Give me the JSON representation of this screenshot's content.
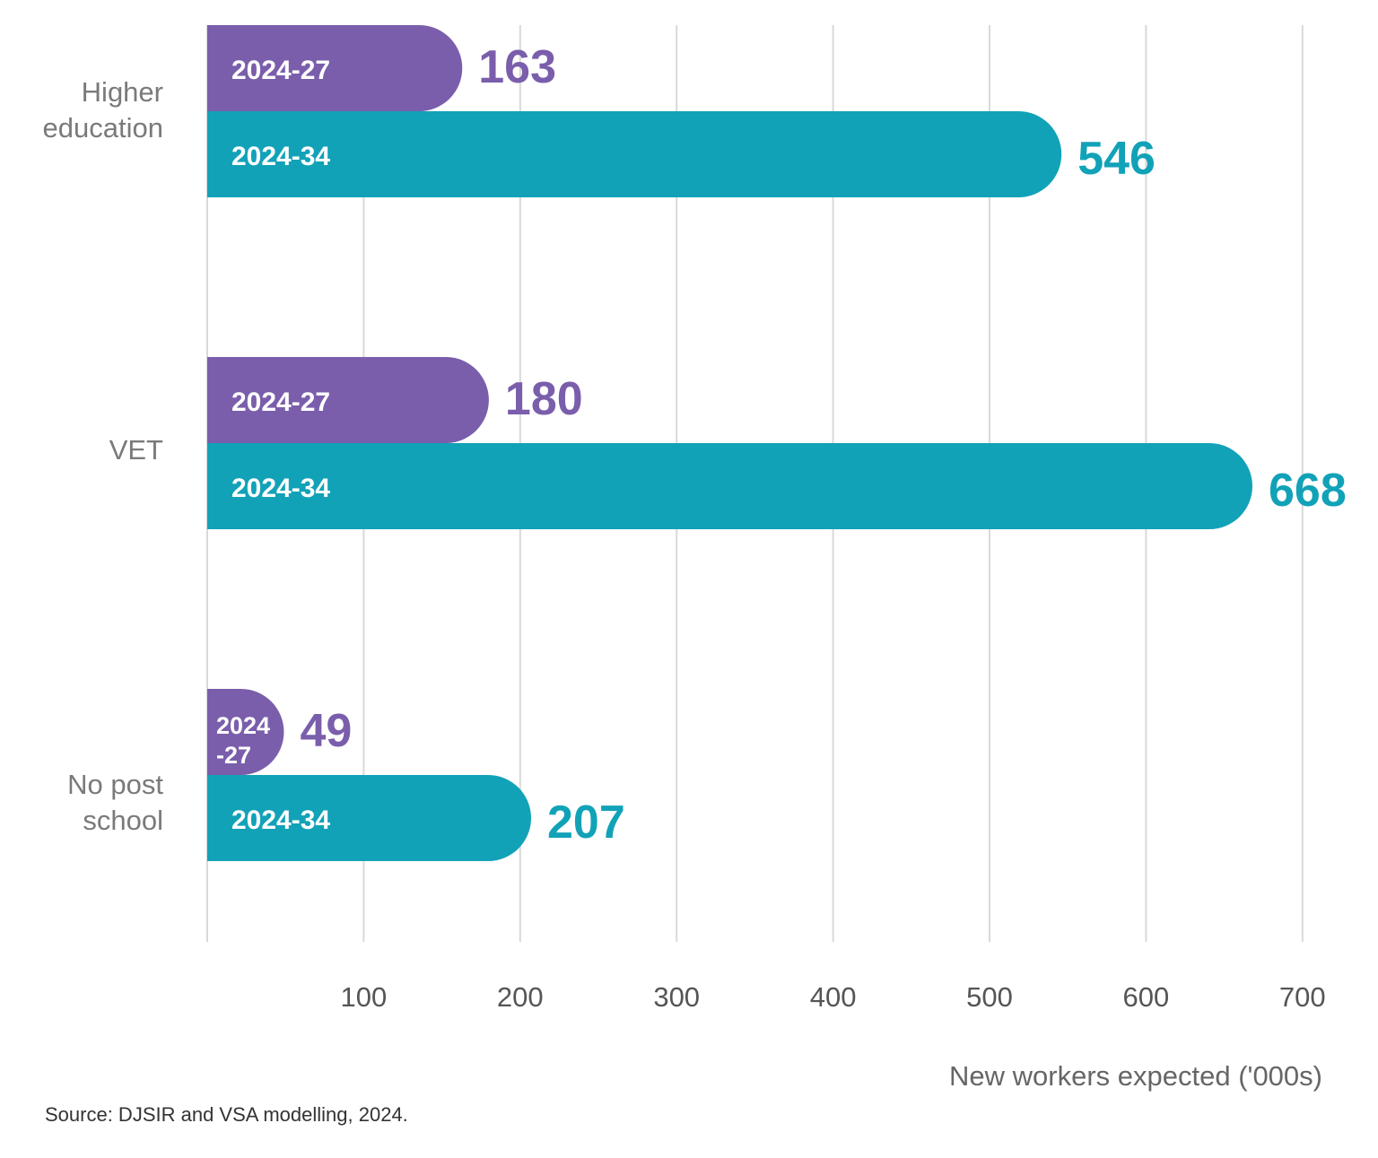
{
  "chart_data": {
    "type": "bar",
    "orientation": "horizontal",
    "categories": [
      "Higher education",
      "VET",
      "No post school"
    ],
    "series": [
      {
        "name": "2024-27",
        "values": [
          163,
          180,
          49
        ],
        "color": "#7a5eab"
      },
      {
        "name": "2024-34",
        "values": [
          546,
          668,
          207
        ],
        "color": "#12a2b8"
      }
    ],
    "bar_labels": [
      [
        "2024-27",
        "2024-34"
      ],
      [
        "2024-27",
        "2024-34"
      ],
      [
        "2024\n-27",
        "2024-34"
      ]
    ],
    "xlabel": "New workers expected ('000s)",
    "ylabel": "",
    "xlim": [
      0,
      700
    ],
    "xticks": [
      100,
      200,
      300,
      400,
      500,
      600,
      700
    ],
    "grid": true,
    "grid_color": "#d9d9d9",
    "legend": "none",
    "category_label_color": "#7a7a7a"
  },
  "source": "Source: DJSIR and VSA modelling, 2024."
}
